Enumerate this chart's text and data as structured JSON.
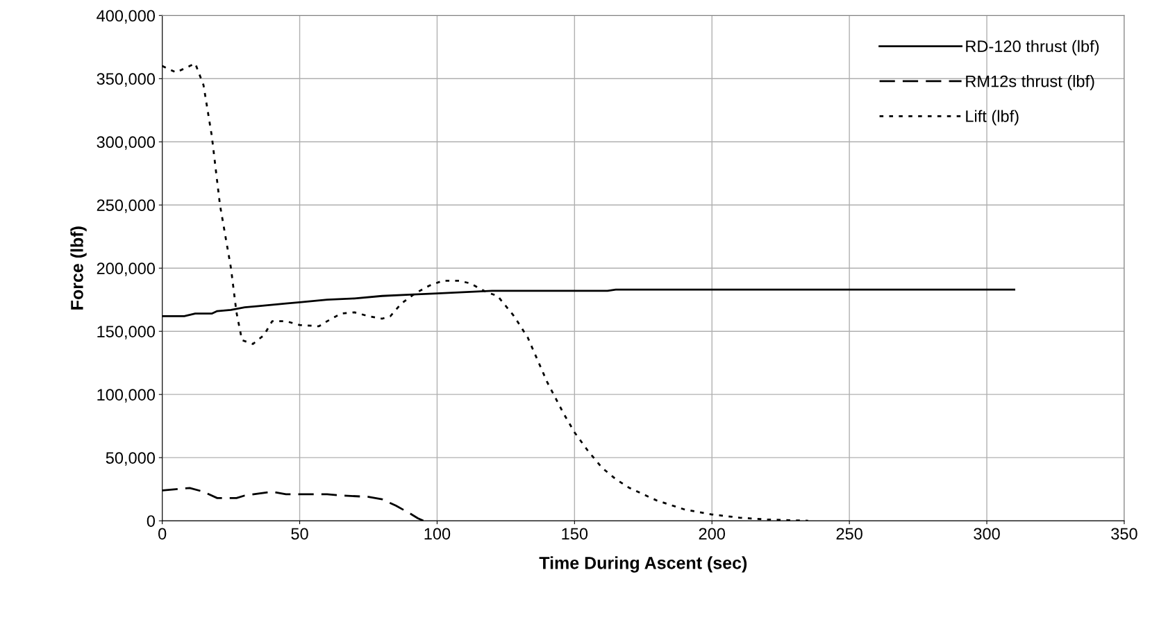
{
  "chart_data": {
    "type": "line",
    "xlabel": "Time During Ascent (sec)",
    "ylabel": "Force (lbf)",
    "xlim": [
      0,
      350
    ],
    "xticks": [
      0,
      50,
      100,
      150,
      200,
      250,
      300,
      350
    ],
    "ylim": [
      0,
      400000
    ],
    "yticks": [
      {
        "value": 0,
        "label": "0"
      },
      {
        "value": 50000,
        "label": "50,000"
      },
      {
        "value": 100000,
        "label": "100,000"
      },
      {
        "value": 150000,
        "label": "150,000"
      },
      {
        "value": 200000,
        "label": "200,000"
      },
      {
        "value": 250000,
        "label": "250,000"
      },
      {
        "value": 300000,
        "label": "300,000"
      },
      {
        "value": 350000,
        "label": "350,000"
      },
      {
        "value": 400000,
        "label": "400,000"
      }
    ],
    "grid": true,
    "legend": "top right",
    "marker": "none",
    "series": [
      {
        "name": "RD-120 thrust (lbf)",
        "color": "#000000",
        "line_style": "solid",
        "x": [
          0,
          8,
          12,
          18,
          20,
          25,
          30,
          35,
          45,
          50,
          60,
          70,
          80,
          90,
          100,
          120,
          162,
          165,
          310
        ],
        "values": [
          162000,
          162000,
          164000,
          164000,
          166000,
          167000,
          169000,
          170000,
          172000,
          173000,
          175000,
          176000,
          178000,
          179000,
          180000,
          182000,
          182000,
          183000,
          183000
        ]
      },
      {
        "name": "RM12s thrust (lbf)",
        "color": "#000000",
        "line_style": "dashed",
        "x": [
          0,
          5,
          10,
          15,
          20,
          27,
          30,
          40,
          45,
          60,
          65,
          75,
          80,
          85,
          90,
          93,
          95
        ],
        "values": [
          24000,
          25000,
          26000,
          23000,
          18000,
          18000,
          20000,
          23000,
          21000,
          21000,
          20000,
          19000,
          17000,
          12000,
          6000,
          2000,
          0
        ]
      },
      {
        "name": "Lift (lbf)",
        "color": "#000000",
        "line_style": "dotted",
        "x": [
          0,
          5,
          10,
          12,
          15,
          18,
          21,
          25,
          27,
          29,
          33,
          37,
          40,
          45,
          50,
          57,
          60,
          65,
          70,
          75,
          80,
          83,
          87,
          92,
          97,
          102,
          108,
          112,
          118,
          122,
          128,
          133,
          140,
          146,
          150,
          155,
          160,
          165,
          170,
          180,
          190,
          200,
          210,
          220,
          235
        ],
        "values": [
          360000,
          355000,
          360000,
          362000,
          345000,
          305000,
          250000,
          200000,
          165000,
          143000,
          140000,
          147000,
          158000,
          158000,
          155000,
          154000,
          158000,
          164000,
          165000,
          162000,
          160000,
          162000,
          172000,
          180000,
          186000,
          190000,
          190000,
          188000,
          181000,
          178000,
          162000,
          145000,
          110000,
          85000,
          70000,
          55000,
          42000,
          33000,
          26000,
          16000,
          9000,
          5000,
          2500,
          1000,
          0
        ]
      }
    ]
  }
}
